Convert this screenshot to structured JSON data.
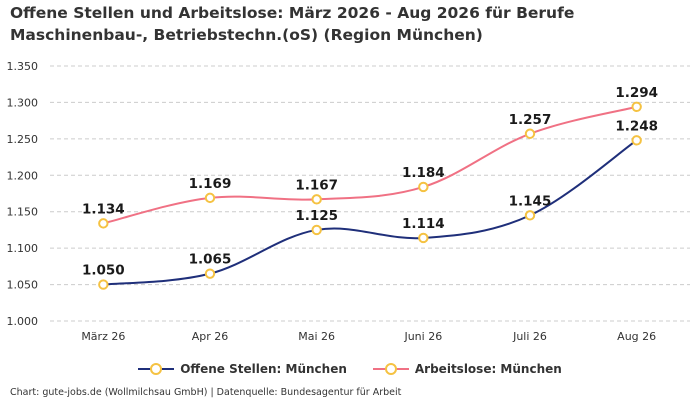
{
  "title": "Offene Stellen und Arbeitslose: März 2026 - Aug 2026 für Berufe Maschinenbau-, Betriebstechn.(oS) (Region München)",
  "source": "Chart: gute-jobs.de (Wollmilchsau GmbH) | Datenquelle: Bundesagentur für Arbeit",
  "colors": {
    "offene": "#1f2f7a",
    "arbeitslose": "#f07184",
    "marker_stroke": "#f5c242",
    "grid": "#cccccc"
  },
  "chart_data": {
    "type": "line",
    "title": "Offene Stellen und Arbeitslose: März 2026 - Aug 2026 für Berufe Maschinenbau-, Betriebstechn.(oS) (Region München)",
    "categories": [
      "März 26",
      "Apr 26",
      "Mai 26",
      "Juni 26",
      "Juli 26",
      "Aug 26"
    ],
    "series": [
      {
        "name": "Offene Stellen: München",
        "values": [
          1050,
          1065,
          1125,
          1114,
          1145,
          1248
        ],
        "labels": [
          "1.050",
          "1.065",
          "1.125",
          "1.114",
          "1.145",
          "1.248"
        ]
      },
      {
        "name": "Arbeitslose: München",
        "values": [
          1134,
          1169,
          1167,
          1184,
          1257,
          1294
        ],
        "labels": [
          "1.134",
          "1.169",
          "1.167",
          "1.184",
          "1.257",
          "1.294"
        ]
      }
    ],
    "ylim": [
      1000,
      1350
    ],
    "yticks": [
      1000,
      1050,
      1100,
      1150,
      1200,
      1250,
      1300,
      1350
    ],
    "ytick_labels": [
      "1.000",
      "1.050",
      "1.100",
      "1.150",
      "1.200",
      "1.250",
      "1.300",
      "1.350"
    ],
    "grid": true,
    "legend": "bottom-center"
  }
}
